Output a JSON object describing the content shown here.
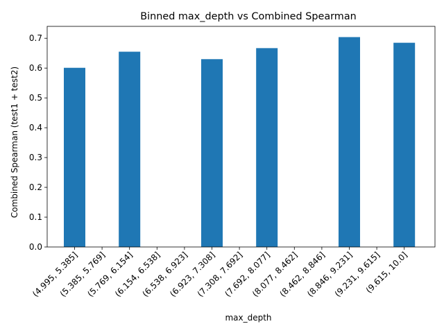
{
  "chart_data": {
    "type": "bar",
    "title": "Binned max_depth vs Combined Spearman",
    "xlabel": "max_depth",
    "ylabel": "Combined Spearman (test1 + test2)",
    "categories": [
      "(4.995, 5.385]",
      "(5.385, 5.769]",
      "(5.769, 6.154]",
      "(6.154, 6.538]",
      "(6.538, 6.923]",
      "(6.923, 7.308]",
      "(7.308, 7.692]",
      "(7.692, 8.077]",
      "(8.077, 8.462]",
      "(8.462, 8.846]",
      "(8.846, 9.231]",
      "(9.231, 9.615]",
      "(9.615, 10.0]"
    ],
    "values": [
      0.601,
      null,
      0.655,
      null,
      null,
      0.63,
      null,
      0.667,
      null,
      null,
      0.704,
      null,
      0.685
    ],
    "ylim": [
      0,
      0.74
    ],
    "yticks": [
      "0.0",
      "0.1",
      "0.2",
      "0.3",
      "0.4",
      "0.5",
      "0.6",
      "0.7"
    ],
    "bar_color": "#1f77b4",
    "grid": false,
    "legend": false
  }
}
